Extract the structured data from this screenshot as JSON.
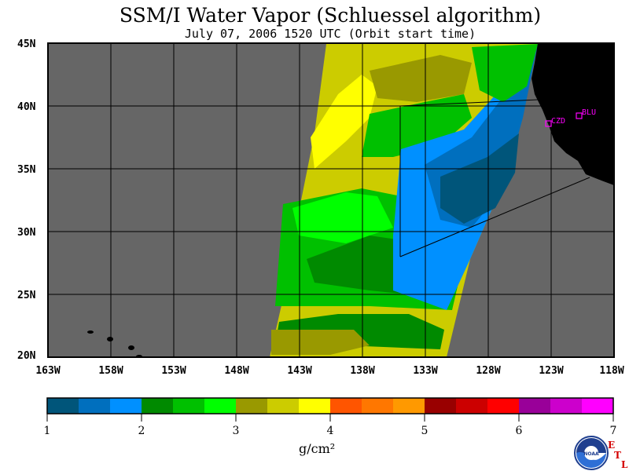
{
  "title": "SSM/I Water Vapor (Schluessel algorithm)",
  "subtitle": "July 07, 2006  1520 UTC  (Orbit start time)",
  "lat_labels": [
    "45N",
    "40N",
    "35N",
    "30N",
    "25N",
    "20N"
  ],
  "lon_labels": [
    "163W",
    "158W",
    "153W",
    "148W",
    "143W",
    "138W",
    "133W",
    "128W",
    "123W",
    "118W"
  ],
  "stations": [
    {
      "label": "BLU"
    },
    {
      "label": "CZD"
    }
  ],
  "colorbar": {
    "colors": [
      "#00557a",
      "#006fbe",
      "#0090ff",
      "#008a00",
      "#00c000",
      "#00ff00",
      "#999900",
      "#cccc00",
      "#ffff00",
      "#ff5500",
      "#ff7700",
      "#ff9900",
      "#990000",
      "#cc0000",
      "#ff0000",
      "#990099",
      "#cc00cc",
      "#ff00ff"
    ],
    "tick_labels": [
      "1",
      "2",
      "3",
      "4",
      "5",
      "6",
      "7"
    ],
    "unit": "g/cm²"
  },
  "colors": {
    "ocean_no_data": "#666666",
    "land": "#000000",
    "station_marker": "#ff00ff",
    "swath_outline": "#000000"
  },
  "logo": {
    "text": "NOAA",
    "icon": "noaa-logo-icon"
  },
  "lab_letters": [
    "E",
    "T",
    "L"
  ]
}
